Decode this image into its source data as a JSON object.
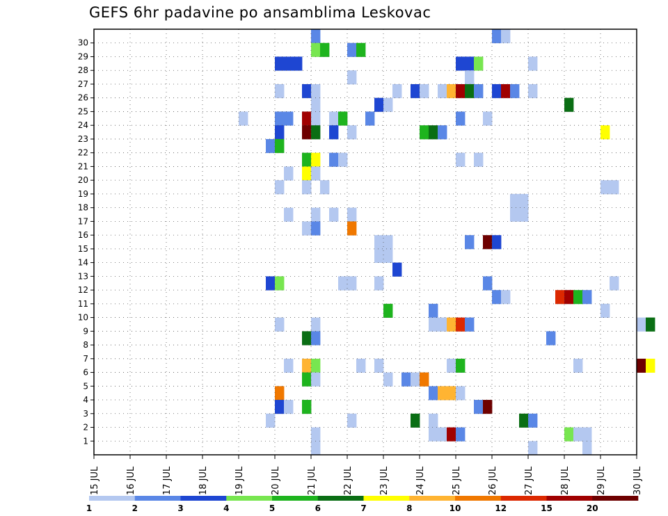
{
  "chart_data": {
    "type": "heatmap",
    "title": "GEFS 6hr padavine po ansamblima Leskovac",
    "x_labels": [
      "15 JUL",
      "16 JUL",
      "17 JUL",
      "18 JUL",
      "19 JUL",
      "20 JUL",
      "21 JUL",
      "22 JUL",
      "23 JUL",
      "24 JUL",
      "25 JUL",
      "26 JUL",
      "27 JUL",
      "28 JUL",
      "29 JUL",
      "30 JUL"
    ],
    "y_ticks": [
      "1",
      "2",
      "3",
      "4",
      "5",
      "6",
      "7",
      "8",
      "9",
      "10",
      "11",
      "12",
      "13",
      "14",
      "15",
      "16",
      "17",
      "18",
      "19",
      "20",
      "21",
      "22",
      "23",
      "24",
      "25",
      "26",
      "27",
      "28",
      "29",
      "30"
    ],
    "ylim": [
      0,
      30
    ],
    "steps_per_day": 4,
    "grid": "dotted",
    "legend": {
      "placement": "bottom",
      "labels": [
        "1",
        "2",
        "3",
        "4",
        "5",
        "6",
        "7",
        "8",
        "10",
        "12",
        "15",
        "20"
      ],
      "colors": [
        "#b4c8f0",
        "#5a87e6",
        "#1e46d2",
        "#78e650",
        "#1eb41e",
        "#0a6e14",
        "#ffff00",
        "#ffb432",
        "#f07800",
        "#dc2800",
        "#a00000",
        "#6e0000"
      ]
    },
    "cells": [
      [
        24,
        30,
        1
      ],
      [
        44,
        30,
        1
      ],
      [
        45,
        30,
        0
      ],
      [
        24,
        29,
        3
      ],
      [
        25,
        29,
        4
      ],
      [
        28,
        29,
        1
      ],
      [
        29,
        29,
        4
      ],
      [
        20,
        28,
        2
      ],
      [
        21,
        28,
        2
      ],
      [
        22,
        28,
        2
      ],
      [
        40,
        28,
        2
      ],
      [
        41,
        28,
        2
      ],
      [
        42,
        28,
        3
      ],
      [
        48,
        28,
        0
      ],
      [
        28,
        27,
        0
      ],
      [
        41,
        27,
        0
      ],
      [
        20,
        26,
        0
      ],
      [
        23,
        26,
        2
      ],
      [
        24,
        26,
        0
      ],
      [
        33,
        26,
        0
      ],
      [
        35,
        26,
        2
      ],
      [
        36,
        26,
        0
      ],
      [
        38,
        26,
        0
      ],
      [
        39,
        26,
        7
      ],
      [
        40,
        26,
        10
      ],
      [
        41,
        26,
        5
      ],
      [
        42,
        26,
        1
      ],
      [
        44,
        26,
        2
      ],
      [
        45,
        26,
        10
      ],
      [
        46,
        26,
        1
      ],
      [
        48,
        26,
        0
      ],
      [
        24,
        25,
        0
      ],
      [
        31,
        25,
        2
      ],
      [
        32,
        25,
        0
      ],
      [
        52,
        25,
        5
      ],
      [
        16,
        24,
        0
      ],
      [
        20,
        24,
        1
      ],
      [
        21,
        24,
        1
      ],
      [
        23,
        24,
        10
      ],
      [
        24,
        24,
        0
      ],
      [
        26,
        24,
        0
      ],
      [
        27,
        24,
        4
      ],
      [
        30,
        24,
        1
      ],
      [
        40,
        24,
        1
      ],
      [
        43,
        24,
        0
      ],
      [
        20,
        23,
        2
      ],
      [
        23,
        23,
        11
      ],
      [
        24,
        23,
        5
      ],
      [
        26,
        23,
        2
      ],
      [
        28,
        23,
        0
      ],
      [
        36,
        23,
        4
      ],
      [
        37,
        23,
        5
      ],
      [
        38,
        23,
        1
      ],
      [
        56,
        23,
        6
      ],
      [
        19,
        22,
        1
      ],
      [
        20,
        22,
        4
      ],
      [
        40,
        21,
        0
      ],
      [
        23,
        21,
        4
      ],
      [
        24,
        21,
        6
      ],
      [
        26,
        21,
        1
      ],
      [
        27,
        21,
        0
      ],
      [
        42,
        21,
        0
      ],
      [
        21,
        20,
        0
      ],
      [
        23,
        20,
        6
      ],
      [
        24,
        20,
        0
      ],
      [
        20,
        19,
        0
      ],
      [
        23,
        19,
        0
      ],
      [
        25,
        19,
        0
      ],
      [
        56,
        19,
        0
      ],
      [
        57,
        19,
        0
      ],
      [
        46,
        18,
        0
      ],
      [
        47,
        18,
        0
      ],
      [
        46,
        17,
        0
      ],
      [
        47,
        17,
        0
      ],
      [
        21,
        17,
        0
      ],
      [
        24,
        17,
        0
      ],
      [
        26,
        17,
        0
      ],
      [
        28,
        17,
        0
      ],
      [
        23,
        16,
        0
      ],
      [
        24,
        16,
        1
      ],
      [
        28,
        16,
        8
      ],
      [
        31,
        15,
        0
      ],
      [
        32,
        15,
        0
      ],
      [
        41,
        15,
        1
      ],
      [
        43,
        15,
        11
      ],
      [
        44,
        15,
        2
      ],
      [
        31,
        14,
        0
      ],
      [
        32,
        14,
        0
      ],
      [
        33,
        13,
        2
      ],
      [
        19,
        12,
        2
      ],
      [
        20,
        12,
        3
      ],
      [
        27,
        12,
        0
      ],
      [
        28,
        12,
        0
      ],
      [
        31,
        12,
        0
      ],
      [
        43,
        12,
        1
      ],
      [
        57,
        12,
        0
      ],
      [
        44,
        11,
        1
      ],
      [
        45,
        11,
        0
      ],
      [
        51,
        11,
        9
      ],
      [
        52,
        11,
        10
      ],
      [
        53,
        11,
        4
      ],
      [
        54,
        11,
        1
      ],
      [
        32,
        10,
        4
      ],
      [
        37,
        10,
        1
      ],
      [
        56,
        10,
        0
      ],
      [
        20,
        9,
        0
      ],
      [
        24,
        9,
        0
      ],
      [
        37,
        9,
        0
      ],
      [
        38,
        9,
        0
      ],
      [
        39,
        9,
        7
      ],
      [
        40,
        9,
        9
      ],
      [
        41,
        9,
        1
      ],
      [
        60,
        9,
        0
      ],
      [
        61,
        9,
        5
      ],
      [
        23,
        8,
        5
      ],
      [
        24,
        8,
        1
      ],
      [
        50,
        8,
        1
      ],
      [
        21,
        6,
        0
      ],
      [
        23,
        6,
        7
      ],
      [
        24,
        6,
        3
      ],
      [
        29,
        6,
        0
      ],
      [
        31,
        6,
        0
      ],
      [
        39,
        6,
        0
      ],
      [
        40,
        6,
        4
      ],
      [
        53,
        6,
        0
      ],
      [
        60,
        6,
        11
      ],
      [
        61,
        6,
        6
      ],
      [
        23,
        5,
        4
      ],
      [
        24,
        5,
        0
      ],
      [
        32,
        5,
        0
      ],
      [
        34,
        5,
        1
      ],
      [
        35,
        5,
        0
      ],
      [
        36,
        5,
        8
      ],
      [
        20,
        4,
        8
      ],
      [
        37,
        4,
        1
      ],
      [
        38,
        4,
        7
      ],
      [
        39,
        4,
        7
      ],
      [
        40,
        4,
        0
      ],
      [
        20,
        3,
        2
      ],
      [
        21,
        3,
        0
      ],
      [
        23,
        3,
        4
      ],
      [
        42,
        3,
        1
      ],
      [
        43,
        3,
        11
      ],
      [
        19,
        2,
        0
      ],
      [
        28,
        2,
        0
      ],
      [
        35,
        2,
        5
      ],
      [
        37,
        2,
        0
      ],
      [
        47,
        2,
        5
      ],
      [
        48,
        2,
        1
      ],
      [
        24,
        1,
        0
      ],
      [
        37,
        1,
        0
      ],
      [
        38,
        1,
        0
      ],
      [
        39,
        1,
        10
      ],
      [
        40,
        1,
        1
      ],
      [
        52,
        1,
        3
      ],
      [
        53,
        1,
        0
      ],
      [
        54,
        1,
        0
      ],
      [
        24,
        0,
        0
      ],
      [
        48,
        0,
        0
      ],
      [
        54,
        0,
        0
      ]
    ]
  }
}
